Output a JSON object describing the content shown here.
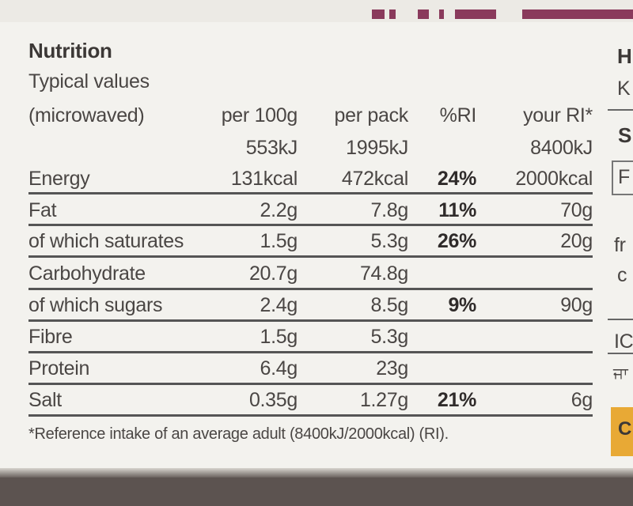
{
  "label": {
    "heading": "Nutrition",
    "subheading": "Typical values",
    "prep": "(microwaved)",
    "columns": [
      "per 100g",
      "per pack",
      "%RI",
      "your RI*"
    ],
    "energy_kj": [
      "553kJ",
      "1995kJ",
      "",
      "8400kJ"
    ],
    "rows": [
      {
        "name": "Energy",
        "per100": "131kcal",
        "perpack": "472kcal",
        "ri": "24%",
        "yourri": "2000kcal"
      },
      {
        "name": "Fat",
        "per100": "2.2g",
        "perpack": "7.8g",
        "ri": "11%",
        "yourri": "70g"
      },
      {
        "name": "of which saturates",
        "per100": "1.5g",
        "perpack": "5.3g",
        "ri": "26%",
        "yourri": "20g"
      },
      {
        "name": "Carbohydrate",
        "per100": "20.7g",
        "perpack": "74.8g",
        "ri": "",
        "yourri": ""
      },
      {
        "name": "of which sugars",
        "per100": "2.4g",
        "perpack": "8.5g",
        "ri": "9%",
        "yourri": "90g"
      },
      {
        "name": "Fibre",
        "per100": "1.5g",
        "perpack": "5.3g",
        "ri": "",
        "yourri": ""
      },
      {
        "name": "Protein",
        "per100": "6.4g",
        "perpack": "23g",
        "ri": "",
        "yourri": ""
      },
      {
        "name": "Salt",
        "per100": "0.35g",
        "perpack": "1.27g",
        "ri": "21%",
        "yourri": "6g"
      }
    ],
    "footnote": "*Reference intake of an average adult (8400kJ/2000kcal) (RI)."
  },
  "right_edge": [
    "H",
    "K",
    "S",
    "F",
    "fr",
    "c",
    "IC",
    "ਜਾ",
    "C"
  ],
  "colors": {
    "card": "#f3f2ee",
    "text": "#4a4644",
    "accent": "#8a3a5c",
    "badge": "#e8a935"
  }
}
